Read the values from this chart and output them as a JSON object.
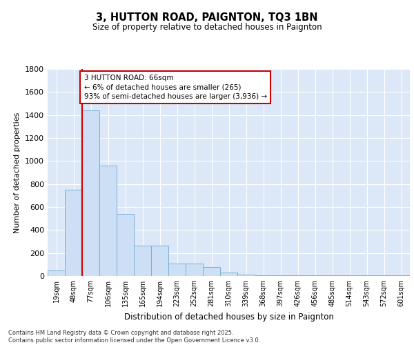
{
  "title": "3, HUTTON ROAD, PAIGNTON, TQ3 1BN",
  "subtitle": "Size of property relative to detached houses in Paignton",
  "xlabel": "Distribution of detached houses by size in Paignton",
  "ylabel": "Number of detached properties",
  "categories": [
    "19sqm",
    "48sqm",
    "77sqm",
    "106sqm",
    "135sqm",
    "165sqm",
    "194sqm",
    "223sqm",
    "252sqm",
    "281sqm",
    "310sqm",
    "339sqm",
    "368sqm",
    "397sqm",
    "426sqm",
    "456sqm",
    "485sqm",
    "514sqm",
    "543sqm",
    "572sqm",
    "601sqm"
  ],
  "values": [
    50,
    750,
    1440,
    960,
    540,
    265,
    265,
    110,
    110,
    80,
    30,
    15,
    5,
    5,
    5,
    5,
    5,
    5,
    5,
    5,
    5
  ],
  "bar_color": "#ccdff5",
  "bar_edge_color": "#7bafd4",
  "background_color": "#dce8f8",
  "grid_color": "#ffffff",
  "vline_color": "#cc0000",
  "vline_pos": 1.5,
  "annotation_text": "3 HUTTON ROAD: 66sqm\n← 6% of detached houses are smaller (265)\n93% of semi-detached houses are larger (3,936) →",
  "annotation_box_color": "#ffffff",
  "annotation_box_edge": "#cc0000",
  "footer_text": "Contains HM Land Registry data © Crown copyright and database right 2025.\nContains public sector information licensed under the Open Government Licence v3.0.",
  "ylim": [
    0,
    1800
  ],
  "yticks": [
    0,
    200,
    400,
    600,
    800,
    1000,
    1200,
    1400,
    1600,
    1800
  ]
}
